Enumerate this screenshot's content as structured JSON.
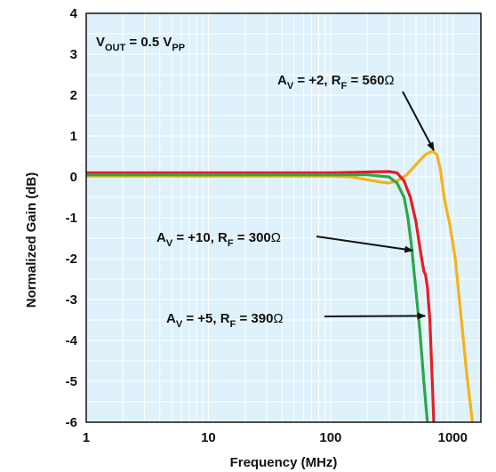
{
  "chart_data": {
    "type": "line",
    "xlabel": "Frequency (MHz)",
    "ylabel": "Normalized Gain (dB)",
    "xscale": "log",
    "xlim": [
      1,
      1700
    ],
    "ylim": [
      -6,
      4
    ],
    "x_ticks": [
      1,
      10,
      100,
      1000
    ],
    "y_ticks": [
      4,
      3,
      2,
      1,
      0,
      -1,
      -2,
      -3,
      -4,
      -5,
      -6
    ],
    "grid": true,
    "colors": {
      "background": "#dff1fb",
      "grid": "#ffffff",
      "frame": "#111111"
    },
    "condition": {
      "main": "V",
      "sub1": "OUT",
      "mid": " = 0.5 V",
      "sub2": "PP"
    },
    "series": [
      {
        "color": "#f5b21b",
        "x": [
          1,
          100,
          150,
          200,
          260,
          300,
          350,
          420,
          500,
          600,
          680,
          740,
          790,
          850,
          950,
          1050,
          1150,
          1300,
          1450
        ],
        "y": [
          0.02,
          0.02,
          0.0,
          -0.07,
          -0.13,
          -0.15,
          -0.1,
          0.05,
          0.3,
          0.55,
          0.63,
          0.55,
          0.2,
          -0.5,
          -1.2,
          -2.0,
          -3.2,
          -4.8,
          -6.0
        ]
      },
      {
        "color": "#e31e24",
        "x": [
          1,
          100,
          200,
          300,
          350,
          400,
          450,
          500,
          550,
          580,
          600,
          620,
          650,
          680,
          700
        ],
        "y": [
          0.1,
          0.1,
          0.12,
          0.13,
          0.1,
          -0.1,
          -0.5,
          -1.1,
          -1.9,
          -2.3,
          -2.4,
          -2.7,
          -3.5,
          -5.0,
          -6.0
        ]
      },
      {
        "color": "#2aa74a",
        "x": [
          1,
          100,
          200,
          300,
          350,
          400,
          430,
          460,
          500,
          540,
          580,
          620
        ],
        "y": [
          0.05,
          0.05,
          0.05,
          0.0,
          -0.15,
          -0.5,
          -1.0,
          -1.7,
          -2.8,
          -3.8,
          -5.0,
          -6.0
        ]
      }
    ],
    "annotations": [
      {
        "parts": [
          {
            "t": "A"
          },
          {
            "t": "V",
            "sub": true
          },
          {
            "t": " = +2, R"
          },
          {
            "t": "F",
            "sub": true
          },
          {
            "t": " = 560"
          },
          {
            "t": "Ω",
            "thin": true
          }
        ],
        "arrow_to": [
          700,
          0.65
        ]
      },
      {
        "parts": [
          {
            "t": "A"
          },
          {
            "t": "V",
            "sub": true
          },
          {
            "t": " = +10, R"
          },
          {
            "t": "F",
            "sub": true
          },
          {
            "t": " = 300"
          },
          {
            "t": "Ω",
            "thin": true
          }
        ],
        "arrow_to": [
          470,
          -1.8
        ]
      },
      {
        "parts": [
          {
            "t": "A"
          },
          {
            "t": "V",
            "sub": true
          },
          {
            "t": " = +5, R"
          },
          {
            "t": "F",
            "sub": true
          },
          {
            "t": " = 390"
          },
          {
            "t": "Ω",
            "thin": true
          }
        ],
        "arrow_to": [
          595,
          -3.4
        ]
      }
    ]
  }
}
